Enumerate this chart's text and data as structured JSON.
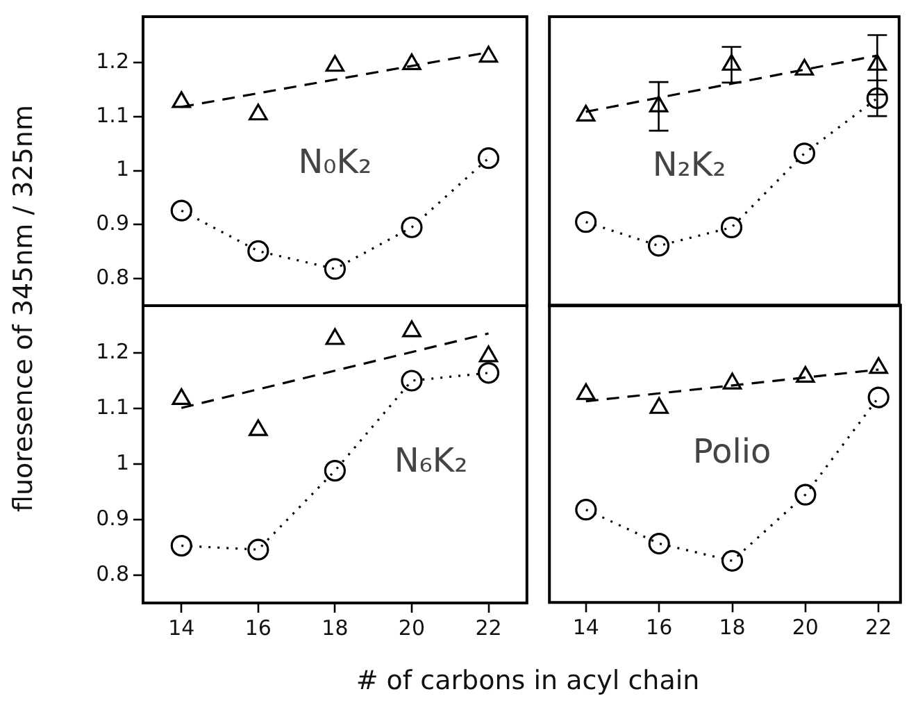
{
  "chart_data": [
    {
      "type": "line",
      "ylabel": "fluoresence of 345nm / 325nm",
      "x": [
        14,
        16,
        18,
        20,
        22
      ],
      "xlim": [
        13,
        23
      ],
      "xticks": [
        14,
        16,
        18,
        20,
        22
      ],
      "ylim": [
        0.75,
        1.285
      ],
      "yticks": [
        0.8,
        0.9,
        1,
        1.1,
        1.2
      ],
      "tick_labels": "y",
      "grid": false,
      "legend": false,
      "annotations": [
        "N₀K₂"
      ],
      "series": [
        {
          "type": "scatter",
          "marker": "triangle",
          "color": "#000000",
          "values": [
            1.127,
            1.104,
            1.194,
            1.197,
            1.211
          ]
        },
        {
          "type": "line",
          "marker": "circle",
          "line_style": "dotted",
          "color": "#000000",
          "values": [
            0.926,
            0.851,
            0.818,
            0.895,
            1.023
          ]
        },
        {
          "type": "line",
          "marker": "none",
          "line_style": "dashed",
          "color": "#000000",
          "values": [
            1.118,
            null,
            null,
            null,
            1.219
          ]
        }
      ]
    },
    {
      "type": "line",
      "x": [
        14,
        16,
        18,
        20,
        22
      ],
      "xlim": [
        13,
        22.6
      ],
      "xticks": [
        14,
        16,
        18,
        20,
        22
      ],
      "ylim": [
        0.75,
        1.285
      ],
      "yticks": [
        0.8,
        0.9,
        1,
        1.1,
        1.2
      ],
      "tick_labels": false,
      "grid": false,
      "legend": false,
      "annotations": [
        "N₂K₂"
      ],
      "series": [
        {
          "type": "scatter",
          "marker": "triangle",
          "color": "#000000",
          "values": [
            1.102,
            1.119,
            1.196,
            1.187,
            1.196
          ],
          "errors": [
            null,
            0.045,
            0.033,
            null,
            0.055
          ]
        },
        {
          "type": "line",
          "marker": "circle",
          "line_style": "dotted",
          "color": "#000000",
          "values": [
            0.905,
            0.861,
            0.895,
            1.032,
            1.134
          ],
          "errors": [
            null,
            null,
            null,
            null,
            0.033
          ]
        },
        {
          "type": "line",
          "marker": "none",
          "line_style": "dashed",
          "color": "#000000",
          "values": [
            1.109,
            null,
            null,
            null,
            1.213
          ]
        }
      ]
    },
    {
      "type": "line",
      "xlabel": "# of carbons in acyl chain",
      "x": [
        14,
        16,
        18,
        20,
        22
      ],
      "xlim": [
        13,
        23
      ],
      "xticks": [
        14,
        16,
        18,
        20,
        22
      ],
      "ylim": [
        0.75,
        1.285
      ],
      "yticks": [
        0.8,
        0.9,
        1,
        1.1,
        1.2
      ],
      "grid": false,
      "legend": false,
      "annotations": [
        "N₆K₂"
      ],
      "series": [
        {
          "type": "scatter",
          "marker": "triangle",
          "color": "#000000",
          "values": [
            1.117,
            1.061,
            1.225,
            1.239,
            1.194
          ]
        },
        {
          "type": "line",
          "marker": "circle",
          "line_style": "dotted",
          "color": "#000000",
          "values": [
            0.853,
            0.846,
            0.988,
            1.15,
            1.164
          ]
        },
        {
          "type": "line",
          "marker": "none",
          "line_style": "dashed",
          "color": "#000000",
          "values": [
            1.101,
            null,
            null,
            null,
            1.235
          ]
        }
      ]
    },
    {
      "type": "line",
      "x": [
        14,
        16,
        18,
        20,
        22
      ],
      "xlim": [
        13,
        22.6
      ],
      "xticks": [
        14,
        16,
        18,
        20,
        22
      ],
      "ylim": [
        0.75,
        1.285
      ],
      "yticks": [
        0.8,
        0.9,
        1,
        1.1,
        1.2
      ],
      "tick_labels": "x",
      "grid": false,
      "legend": false,
      "annotations": [
        "Polio"
      ],
      "series": [
        {
          "type": "scatter",
          "marker": "triangle",
          "color": "#000000",
          "values": [
            1.125,
            1.1,
            1.144,
            1.156,
            1.172
          ]
        },
        {
          "type": "line",
          "marker": "circle",
          "line_style": "dotted",
          "color": "#000000",
          "values": [
            0.917,
            0.856,
            0.825,
            0.944,
            1.119
          ]
        },
        {
          "type": "line",
          "marker": "none",
          "line_style": "dashed",
          "color": "#000000",
          "values": [
            1.112,
            null,
            null,
            null,
            1.169
          ]
        }
      ]
    }
  ]
}
